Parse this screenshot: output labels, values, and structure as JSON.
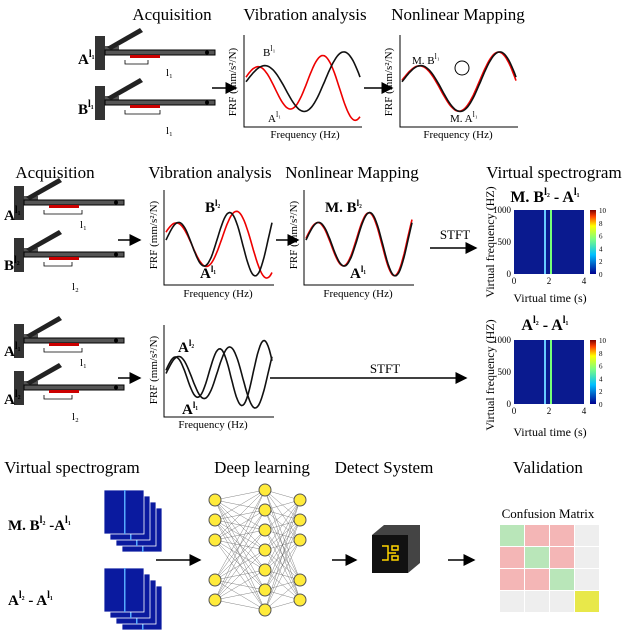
{
  "row1": {
    "titles": [
      "Acquisition",
      "Vibration analysis",
      "Nonlinear Mapping"
    ],
    "samples": [
      {
        "base": "A",
        "sup": "l₁",
        "length": "l₁"
      },
      {
        "base": "B",
        "sup": "l₁",
        "length": "l₁"
      }
    ],
    "plot1": {
      "ylabel": "FRF (mm/s²/N)",
      "xlabel": "Frequency (Hz)",
      "labels": [
        {
          "base": "B",
          "sup": "l₁"
        },
        {
          "base": "A",
          "sup": "l₁"
        }
      ]
    },
    "plot2": {
      "ylabel": "FRF (mm/s²/N)",
      "xlabel": "Frequency (Hz)",
      "labels": [
        {
          "base": "M. B",
          "sup": "l₁"
        },
        {
          "base": "M. A",
          "sup": "l₁"
        }
      ]
    }
  },
  "row2": {
    "titles": [
      "Acquisition",
      "Vibration analysis",
      "Nonlinear Mapping",
      "Virtual spectrogram"
    ],
    "samples": [
      {
        "base": "A",
        "sup": "l₁",
        "length": "l₁"
      },
      {
        "base": "B",
        "sup": "l₂",
        "length": "l₂"
      }
    ],
    "plot1": {
      "ylabel": "FRF (mm/s²/N)",
      "xlabel": "Frequency (Hz)",
      "labels": [
        {
          "base": "B",
          "sup": "l₂"
        },
        {
          "base": "A",
          "sup": "l₁"
        }
      ]
    },
    "plot2": {
      "ylabel": "FRF (mm/s²/N)",
      "xlabel": "Frequency (Hz)",
      "labels": [
        {
          "base": "M. B",
          "sup": "l₂"
        },
        {
          "base": "A",
          "sup": "l₁"
        }
      ]
    },
    "transform": "STFT",
    "spectrogram": {
      "title": {
        "a": "M. B",
        "asup": "l₂",
        "sep": " - ",
        "b": "A",
        "bsup": "l₁"
      },
      "ylabel": "Virtual frequency (HZ)",
      "xlabel": "Virtual time (s)",
      "yticks": [
        0,
        500,
        1000
      ],
      "xticks": [
        0,
        2,
        4
      ],
      "cticks": [
        0,
        2,
        4,
        6,
        8,
        10
      ]
    }
  },
  "row3": {
    "samples": [
      {
        "base": "A",
        "sup": "l₁",
        "length": "l₁"
      },
      {
        "base": "A",
        "sup": "l₂",
        "length": "l₂"
      }
    ],
    "plot1": {
      "ylabel": "FRF (mm/s²/N)",
      "xlabel": "Frequency (Hz)",
      "labels": [
        {
          "base": "A",
          "sup": "l₂"
        },
        {
          "base": "A",
          "sup": "l₁"
        }
      ]
    },
    "transform": "STFT",
    "spectrogram": {
      "title": {
        "a": "A",
        "asup": "l₂",
        "sep": " - ",
        "b": "A",
        "bsup": "l₁"
      },
      "ylabel": "Virtual frequency (HZ)",
      "xlabel": "Virtual time (s)",
      "yticks": [
        0,
        500,
        1000
      ],
      "xticks": [
        0,
        2,
        4
      ],
      "cticks": [
        0,
        2,
        4,
        6,
        8,
        10
      ]
    }
  },
  "row4": {
    "titles": [
      "Virtual spectrogram",
      "Deep learning",
      "Detect System",
      "Validation"
    ],
    "inputs": [
      {
        "a": "M. B",
        "asup": "l₂",
        "sep": " -",
        "b": "A",
        "bsup": "l₁"
      },
      {
        "a": "A",
        "asup": "l₂",
        "sep": " - ",
        "b": "A",
        "bsup": "l₁"
      }
    ],
    "matrix_title": "Confusion Matrix"
  }
}
